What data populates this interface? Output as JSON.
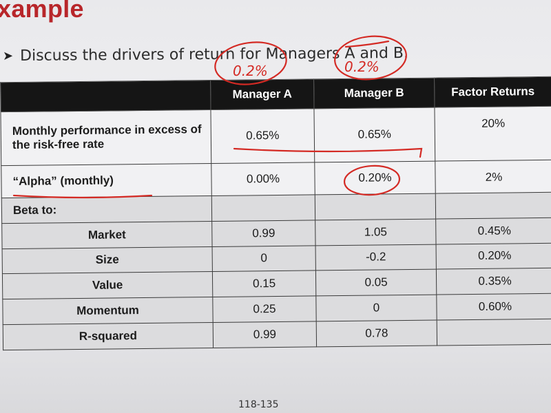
{
  "slide": {
    "title": "xample",
    "bullet": "Discuss the drivers of return for Managers A and B.",
    "page_number": "118-135"
  },
  "table": {
    "headers": [
      "",
      "Manager A",
      "Manager B",
      "Factor Returns"
    ],
    "rows": [
      {
        "label": "Monthly performance in excess of the risk-free rate",
        "a": "0.65%",
        "b": "0.65%",
        "factor": "20%"
      },
      {
        "label": "“Alpha” (monthly)",
        "a": "0.00%",
        "b": "0.20%",
        "factor": "2%"
      },
      {
        "label": "Beta to:",
        "a": "",
        "b": "",
        "factor": ""
      },
      {
        "label": "Market",
        "a": "0.99",
        "b": "1.05",
        "factor": "0.45%"
      },
      {
        "label": "Size",
        "a": "0",
        "b": "-0.2",
        "factor": "0.20%"
      },
      {
        "label": "Value",
        "a": "0.15",
        "b": "0.05",
        "factor": "0.35%"
      },
      {
        "label": "Momentum",
        "a": "0.25",
        "b": "0",
        "factor": "0.60%"
      },
      {
        "label": "R-squared",
        "a": "0.99",
        "b": "0.78",
        "factor": ""
      }
    ]
  },
  "annotations": {
    "note_manager_a": "0.2%",
    "note_manager_b": "0.2%",
    "ink_color": "#d42a24"
  }
}
